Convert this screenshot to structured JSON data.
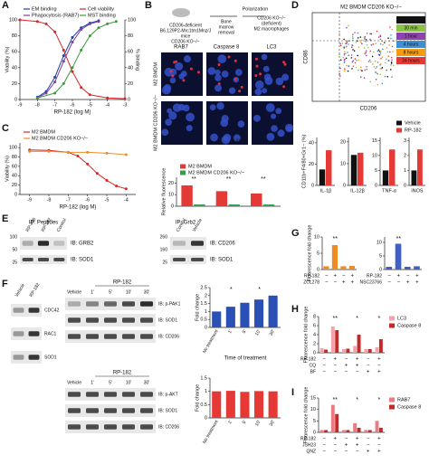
{
  "panel_labels": [
    "A",
    "B",
    "C",
    "D",
    "E",
    "F",
    "G",
    "H",
    "I"
  ],
  "B_diagram": {
    "mouse": [
      "CD206-deficient",
      "B6.129P2-Mrc1tm1Mnz/J",
      "mice",
      "CD206 KO−/−"
    ],
    "step1": [
      "Bone",
      "marrow",
      "removal"
    ],
    "step2": "Polarization",
    "result": [
      "CD206 KO−/−",
      "(deficient)",
      "M2 macrophages"
    ]
  },
  "B_images": {
    "columns": [
      "RAB7",
      "Caspase 8",
      "LC3"
    ],
    "rows": [
      "M2 BMDM",
      "M2 BMDM CD206 KO−/−"
    ],
    "scale": "5 μm"
  },
  "D_flow": {
    "title": "M2 BMDM CD206 KO−/−",
    "x_label": "CD206",
    "y_label": "CD86",
    "legend": [
      {
        "name": "Vehicle",
        "color": "#111111"
      },
      {
        "name": "30 min",
        "color": "#8bc34a"
      },
      {
        "name": "1 hour",
        "color": "#8e44ad"
      },
      {
        "name": "4 hours",
        "color": "#3f8fd2"
      },
      {
        "name": "8 hours",
        "color": "#f39c12"
      },
      {
        "name": "24 hours",
        "color": "#e53935"
      }
    ]
  },
  "E_blots": {
    "left": {
      "title": "IP: Peptides",
      "lanes": [
        "RP-426",
        "RP-182",
        "Control"
      ],
      "bands": [
        "IB: GRB2",
        "IB: SOD1"
      ],
      "markers": [
        "100",
        "50",
        "25"
      ]
    },
    "right": {
      "title": "IP: Grb2",
      "lanes": [
        "Control",
        "Vehicle"
      ],
      "bands": [
        "IB: CD206",
        "IB: SOD1"
      ],
      "markers": [
        "260",
        "160",
        "25"
      ]
    }
  },
  "F_blots": {
    "left": {
      "lanes": [
        "Vehicle",
        "RP-182"
      ],
      "bands": [
        "CDC42",
        "RAC1",
        "SOD1"
      ]
    },
    "top": {
      "group": "RP-182",
      "lanes": [
        "Vehicle",
        "1'",
        "5'",
        "10'",
        "30'"
      ],
      "bands": [
        "IB: p-PAK1",
        "IB: SOD1",
        "IB: CD206"
      ]
    },
    "bottom": {
      "group": "RP-182",
      "lanes": [
        "Vehicle",
        "1'",
        "5'",
        "10'",
        "30'"
      ],
      "bands": [
        "IB: p-AKT",
        "IB: SOD1",
        "IB: CD206"
      ]
    }
  },
  "chart_data": [
    {
      "type": "line",
      "xlabel": "RP-182 (log M)",
      "ylabel": "Viability (%)",
      "y2label": "% binding",
      "legend": "top",
      "xlim": [
        -9,
        -3
      ],
      "xticks": [
        -9,
        -8,
        -7,
        -6,
        -5,
        -4,
        -3
      ],
      "ylim": [
        0,
        100
      ],
      "yticks": [
        0,
        20,
        40,
        60,
        80,
        100
      ],
      "y2lim": [
        0,
        100
      ],
      "y2ticks": [
        0,
        20,
        40,
        60,
        80,
        100
      ],
      "series": [
        {
          "name": "EM binding",
          "color": "#1f3f9f",
          "x": [
            -8,
            -7.5,
            -7,
            -6.5,
            -6,
            -5.5,
            -5,
            -4.5
          ],
          "values": [
            3,
            10,
            28,
            55,
            78,
            90,
            96,
            99
          ]
        },
        {
          "name": "Cell viability",
          "color": "#d62728",
          "x": [
            -9,
            -8,
            -7.5,
            -7,
            -6.5,
            -6,
            -5.5,
            -5,
            -4,
            -3
          ],
          "values": [
            100,
            98,
            95,
            85,
            62,
            35,
            15,
            6,
            2,
            1
          ]
        },
        {
          "name": "Phagocytosis (RAB7)",
          "color": "#7b3f9e",
          "x": [
            -8,
            -7.5,
            -7,
            -6.5,
            -6,
            -5.5,
            -5,
            -4.5
          ],
          "values": [
            2,
            8,
            22,
            48,
            72,
            88,
            95,
            98
          ],
          "axis": "y2"
        },
        {
          "name": "MST binding",
          "color": "#3a9a3a",
          "x": [
            -8,
            -7,
            -6.5,
            -6,
            -5.5,
            -5,
            -4.5,
            -4,
            -3.5
          ],
          "values": [
            2,
            8,
            20,
            40,
            62,
            80,
            90,
            95,
            98
          ],
          "axis": "y2"
        }
      ]
    },
    {
      "type": "line",
      "xlabel": "RP-182 (log M)",
      "ylabel": "Viability (%)",
      "legend": "top",
      "xlim": [
        -9.5,
        -3.5
      ],
      "xticks": [
        -9,
        -8,
        -7,
        -6,
        -5,
        -4
      ],
      "ylim": [
        0,
        110
      ],
      "yticks": [
        0,
        20,
        40,
        60,
        80,
        100
      ],
      "series": [
        {
          "name": "M2 BMDM",
          "color": "#d62728",
          "x": [
            -9,
            -8,
            -7,
            -6.5,
            -6,
            -5.5,
            -5,
            -4.5,
            -4
          ],
          "values": [
            95,
            94,
            90,
            82,
            65,
            45,
            30,
            18,
            12
          ]
        },
        {
          "name": "M2 BMDM CD206 KO−/−",
          "color": "#f08a24",
          "x": [
            -9,
            -8,
            -7,
            -6,
            -5,
            -4
          ],
          "values": [
            92,
            92,
            90,
            90,
            88,
            85
          ]
        }
      ]
    },
    {
      "type": "bar",
      "ylabel": "Relative fluorescence",
      "legend": "top",
      "categories": [
        null,
        null,
        null
      ],
      "ylim": [
        0,
        25
      ],
      "yticks": [
        0,
        10,
        20
      ],
      "annotations": [
        "**",
        "**",
        "**"
      ],
      "series": [
        {
          "name": "M2 BMDM",
          "color": "#e53935",
          "values": [
            18,
            13,
            11
          ]
        },
        {
          "name": "M2 BMDM CD206 KO−/−",
          "color": "#2e9e4f",
          "values": [
            1.5,
            1.5,
            1.5
          ]
        }
      ]
    },
    {
      "type": "bar",
      "ylabel": "CD11b+F4/80+Gr1− (%)",
      "legend": "upper right",
      "categories": [
        "IL-1β"
      ],
      "ylim": [
        0,
        45
      ],
      "yticks": [
        0,
        20,
        40
      ],
      "series": [
        {
          "name": "Vehicle",
          "color": "#111111",
          "values": [
            15
          ]
        },
        {
          "name": "RP-182",
          "color": "#e53935",
          "values": [
            33
          ]
        }
      ]
    },
    {
      "type": "bar",
      "categories": [
        "IL-12β"
      ],
      "ylim": [
        0,
        22
      ],
      "yticks": [
        0,
        10,
        20
      ],
      "series": [
        {
          "color": "#111111",
          "values": [
            14
          ]
        },
        {
          "color": "#e53935",
          "values": [
            15
          ]
        }
      ]
    },
    {
      "type": "bar",
      "categories": [
        "TNF-α"
      ],
      "ylim": [
        0,
        16
      ],
      "yticks": [
        0,
        5,
        10,
        15
      ],
      "series": [
        {
          "color": "#111111",
          "values": [
            5
          ]
        },
        {
          "color": "#e53935",
          "values": [
            12
          ]
        }
      ]
    },
    {
      "type": "bar",
      "categories": [
        "iNOS"
      ],
      "ylim": [
        0,
        3.2
      ],
      "yticks": [
        0,
        1,
        2,
        3
      ],
      "series": [
        {
          "color": "#111111",
          "values": [
            1
          ]
        },
        {
          "color": "#e53935",
          "values": [
            2.4
          ]
        }
      ]
    },
    {
      "type": "bar",
      "ylabel": "Fold change",
      "xlabel": "Time of treatment",
      "categories": [
        "No treatment",
        "1'",
        "5'",
        "10'",
        "30'"
      ],
      "ylim": [
        0,
        2.5
      ],
      "yticks": [
        0,
        0.5,
        1,
        1.5,
        2,
        2.5
      ],
      "annotations": [
        "*",
        "*"
      ],
      "series": [
        {
          "color": "#2a4fb5",
          "values": [
            1,
            1.3,
            1.55,
            1.75,
            2.0
          ]
        }
      ]
    },
    {
      "type": "bar",
      "ylabel": "Fold change",
      "categories": [
        "No treatment",
        "1'",
        "5'",
        "10'",
        "30'"
      ],
      "ylim": [
        0,
        1.5
      ],
      "yticks": [
        0,
        0.5,
        1,
        1.5
      ],
      "series": [
        {
          "color": "#e53935",
          "values": [
            1,
            1.02,
            0.98,
            1.01,
            1
          ]
        }
      ]
    },
    {
      "type": "bar",
      "ylabel": "Fluorescence fold change",
      "categories": [
        null,
        null,
        null,
        null
      ],
      "ylim": [
        0,
        10
      ],
      "yticks": [
        0,
        5,
        10
      ],
      "annotations": [
        "**"
      ],
      "conditions": [
        {
          "label": "RP-182",
          "values": [
            "−",
            "+",
            "−",
            "+"
          ]
        },
        {
          "label": "ZCL278",
          "values": [
            "−",
            "−",
            "+",
            "+"
          ]
        }
      ],
      "series": [
        {
          "color": "#f08a24",
          "values": [
            1,
            7.5,
            1,
            1.1
          ]
        }
      ]
    },
    {
      "type": "bar",
      "categories": [
        null,
        null,
        null,
        null
      ],
      "ylim": [
        0,
        12
      ],
      "yticks": [
        0,
        5,
        10
      ],
      "annotations": [
        "**"
      ],
      "conditions": [
        {
          "label": "RP-182",
          "values": [
            "−",
            "+",
            "−",
            "+"
          ]
        },
        {
          "label": "NSC23766",
          "values": [
            "−",
            "−",
            "+",
            "+"
          ]
        }
      ],
      "series": [
        {
          "color": "#3f5fc4",
          "values": [
            1,
            9.5,
            1,
            1.2
          ]
        }
      ]
    },
    {
      "type": "bar",
      "ylabel": "Fluorescence fold change",
      "legend": "right",
      "categories": [
        null,
        null,
        null,
        null,
        null,
        null
      ],
      "ylim": [
        0,
        8
      ],
      "yticks": [
        0,
        2,
        4,
        6,
        8
      ],
      "annotations": [
        "**",
        "*",
        "*"
      ],
      "conditions": [
        {
          "label": "RP-182",
          "values": [
            "−",
            "+",
            "−",
            "+",
            "−",
            "+"
          ]
        },
        {
          "label": "CQ",
          "values": [
            "−",
            "−",
            "+",
            "+",
            "−",
            "−"
          ]
        },
        {
          "label": "BF",
          "values": [
            "−",
            "−",
            "−",
            "−",
            "+",
            "+"
          ]
        }
      ],
      "series": [
        {
          "name": "LC3",
          "color": "#f4a3a8",
          "values": [
            1,
            5.8,
            0.8,
            1.5,
            0.8,
            1.2
          ]
        },
        {
          "name": "Caspase 8",
          "color": "#c62828",
          "values": [
            0.7,
            5,
            0.9,
            4,
            0.8,
            3
          ]
        }
      ]
    },
    {
      "type": "bar",
      "ylabel": "Fluorescence fold change",
      "legend": "right",
      "categories": [
        null,
        null,
        null,
        null,
        null,
        null
      ],
      "ylim": [
        0,
        15
      ],
      "yticks": [
        0,
        5,
        10,
        15
      ],
      "annotations": [
        "**",
        "*",
        "*"
      ],
      "conditions": [
        {
          "label": "RP-182",
          "values": [
            "−",
            "+",
            "−",
            "+",
            "−",
            "+"
          ]
        },
        {
          "label": "JSH23",
          "values": [
            "−",
            "−",
            "+",
            "+",
            "−",
            "−"
          ]
        },
        {
          "label": "QNZ",
          "values": [
            "−",
            "−",
            "−",
            "−",
            "+",
            "+"
          ]
        }
      ],
      "series": [
        {
          "name": "RAB7",
          "color": "#ef7b82",
          "values": [
            1,
            12,
            1,
            4,
            1,
            5
          ]
        },
        {
          "name": "Caspase 8",
          "color": "#c62828",
          "values": [
            1,
            8,
            1,
            2,
            1,
            2
          ]
        }
      ]
    }
  ]
}
